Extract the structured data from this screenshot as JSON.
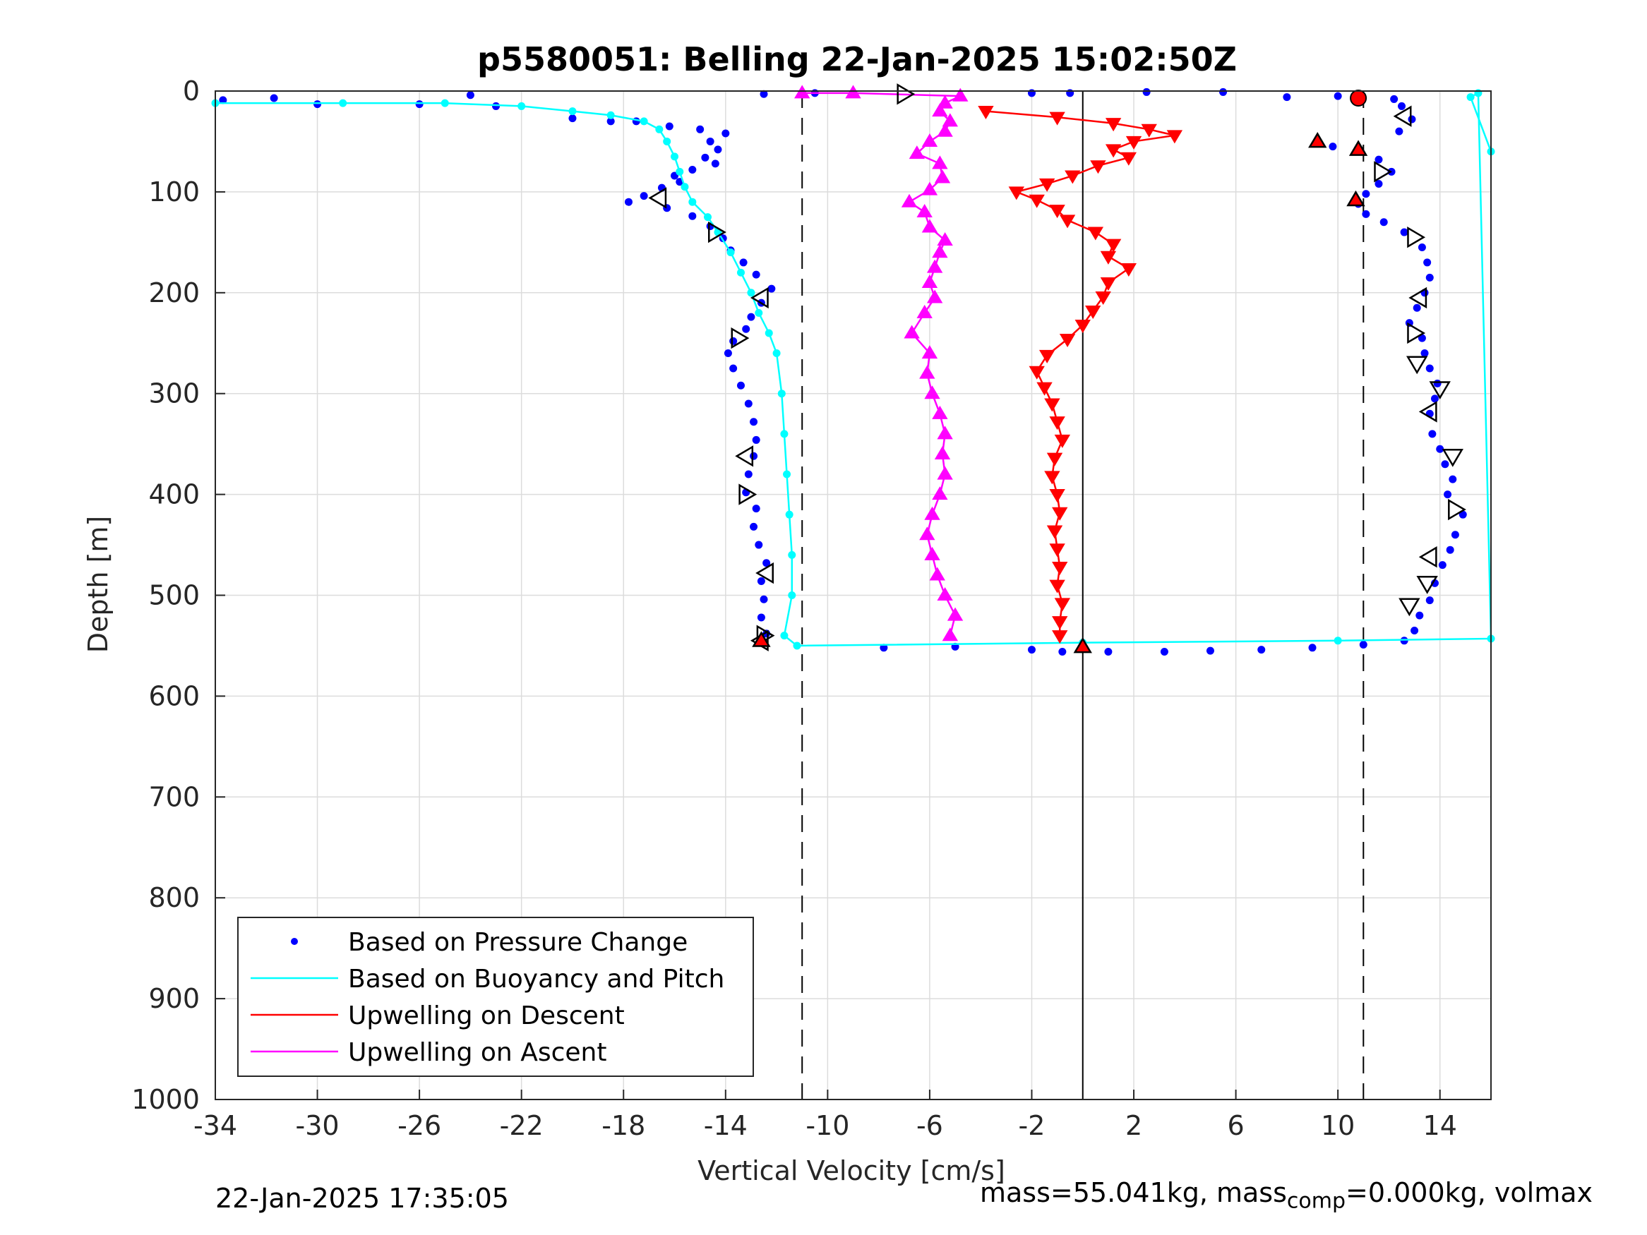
{
  "chart_data": {
    "type": "scatter",
    "title": "p5580051: Belling 22-Jan-2025 15:02:50Z",
    "xlabel": "Vertical Velocity [cm/s]",
    "ylabel": "Depth [m]",
    "xlim": [
      -34,
      16
    ],
    "ylim": [
      0,
      1000
    ],
    "y_reversed": true,
    "grid": true,
    "x_ticks": [
      -34,
      -30,
      -26,
      -22,
      -18,
      -14,
      -10,
      -6,
      -2,
      2,
      6,
      10,
      14
    ],
    "x_tick_labels": [
      "-34",
      "-30",
      "-26",
      "-22",
      "-18",
      "-14",
      "-10",
      "-6",
      "-2",
      "2",
      "6",
      "10",
      "14"
    ],
    "y_ticks": [
      0,
      100,
      200,
      300,
      400,
      500,
      600,
      700,
      800,
      900,
      1000
    ],
    "y_tick_labels": [
      "0",
      "100",
      "200",
      "300",
      "400",
      "500",
      "600",
      "700",
      "800",
      "900",
      "1000"
    ],
    "reference_lines": [
      {
        "x": -11,
        "style": "dashed"
      },
      {
        "x": 0,
        "style": "solid"
      },
      {
        "x": 11,
        "style": "dashed"
      }
    ],
    "legend": {
      "placement": "bottom-left",
      "entries": [
        {
          "label": "Based on Pressure Change",
          "color": "#0000ff",
          "marker": "dot"
        },
        {
          "label": "Based on Buoyancy and Pitch",
          "color": "#00ffff",
          "marker": "line"
        },
        {
          "label": "Upwelling on Descent",
          "color": "#ff0000",
          "marker": "line"
        },
        {
          "label": "Upwelling on Ascent",
          "color": "#ff00ff",
          "marker": "line"
        }
      ]
    },
    "series": [
      {
        "name": "Based on Pressure Change",
        "color": "#0000ff",
        "marker": "dot",
        "points": [
          [
            -33.7,
            9
          ],
          [
            -31.7,
            7
          ],
          [
            -30.0,
            13
          ],
          [
            -26.0,
            13
          ],
          [
            -24.0,
            4
          ],
          [
            -23.0,
            15
          ],
          [
            -20.0,
            27
          ],
          [
            -18.5,
            30
          ],
          [
            -17.5,
            30
          ],
          [
            -16.2,
            35
          ],
          [
            -15.0,
            38
          ],
          [
            -14.0,
            42
          ],
          [
            -14.6,
            50
          ],
          [
            -14.3,
            58
          ],
          [
            -14.8,
            66
          ],
          [
            -14.4,
            72
          ],
          [
            -15.3,
            78
          ],
          [
            -16.0,
            84
          ],
          [
            -15.8,
            90
          ],
          [
            -16.5,
            96
          ],
          [
            -17.2,
            104
          ],
          [
            -17.8,
            110
          ],
          [
            -16.3,
            116
          ],
          [
            -15.3,
            124
          ],
          [
            -14.6,
            134
          ],
          [
            -14.1,
            146
          ],
          [
            -13.8,
            158
          ],
          [
            -13.3,
            170
          ],
          [
            -12.8,
            182
          ],
          [
            -12.2,
            196
          ],
          [
            -12.6,
            210
          ],
          [
            -13.0,
            224
          ],
          [
            -13.2,
            236
          ],
          [
            -13.7,
            248
          ],
          [
            -13.9,
            260
          ],
          [
            -13.7,
            275
          ],
          [
            -13.4,
            292
          ],
          [
            -13.1,
            310
          ],
          [
            -12.9,
            328
          ],
          [
            -12.8,
            346
          ],
          [
            -12.9,
            362
          ],
          [
            -13.1,
            380
          ],
          [
            -13.2,
            398
          ],
          [
            -12.8,
            414
          ],
          [
            -12.9,
            432
          ],
          [
            -12.7,
            450
          ],
          [
            -12.4,
            468
          ],
          [
            -12.6,
            486
          ],
          [
            -12.5,
            504
          ],
          [
            -12.6,
            522
          ],
          [
            -12.4,
            538
          ],
          [
            -12.6,
            546
          ],
          [
            -7.8,
            552
          ],
          [
            -5.0,
            551
          ],
          [
            -2.0,
            554
          ],
          [
            -0.8,
            556
          ],
          [
            1.0,
            556
          ],
          [
            3.2,
            556
          ],
          [
            5.0,
            555
          ],
          [
            7.0,
            554
          ],
          [
            9.0,
            552
          ],
          [
            11.0,
            549
          ],
          [
            12.6,
            545
          ],
          [
            13.0,
            535
          ],
          [
            13.2,
            520
          ],
          [
            13.6,
            505
          ],
          [
            13.8,
            488
          ],
          [
            14.1,
            470
          ],
          [
            14.4,
            455
          ],
          [
            14.6,
            440
          ],
          [
            14.9,
            420
          ],
          [
            14.3,
            400
          ],
          [
            14.5,
            385
          ],
          [
            14.2,
            370
          ],
          [
            14.0,
            355
          ],
          [
            13.7,
            340
          ],
          [
            13.6,
            320
          ],
          [
            13.8,
            305
          ],
          [
            13.9,
            290
          ],
          [
            13.6,
            275
          ],
          [
            13.4,
            260
          ],
          [
            13.3,
            245
          ],
          [
            12.8,
            230
          ],
          [
            13.1,
            215
          ],
          [
            13.4,
            200
          ],
          [
            13.6,
            185
          ],
          [
            13.5,
            170
          ],
          [
            13.3,
            155
          ],
          [
            12.6,
            140
          ],
          [
            11.8,
            130
          ],
          [
            11.1,
            122
          ],
          [
            10.8,
            112
          ],
          [
            11.1,
            102
          ],
          [
            11.6,
            92
          ],
          [
            12.1,
            80
          ],
          [
            11.6,
            68
          ],
          [
            10.8,
            58
          ],
          [
            9.2,
            50
          ],
          [
            9.8,
            55
          ],
          [
            12.4,
            40
          ],
          [
            12.9,
            28
          ],
          [
            12.5,
            15
          ],
          [
            12.2,
            8
          ],
          [
            10.0,
            5
          ],
          [
            8.0,
            6
          ],
          [
            5.5,
            1
          ],
          [
            2.5,
            1
          ],
          [
            -0.5,
            2
          ],
          [
            -2.0,
            2
          ],
          [
            -10.5,
            2
          ],
          [
            -12.5,
            3
          ]
        ]
      },
      {
        "name": "Based on Buoyancy and Pitch",
        "color": "#00ffff",
        "marker": "line",
        "points": [
          [
            -34.0,
            12
          ],
          [
            -29.0,
            12
          ],
          [
            -25.0,
            12
          ],
          [
            -22.0,
            15
          ],
          [
            -20.0,
            20
          ],
          [
            -18.5,
            24
          ],
          [
            -17.2,
            30
          ],
          [
            -16.6,
            38
          ],
          [
            -16.3,
            50
          ],
          [
            -16.0,
            65
          ],
          [
            -15.8,
            80
          ],
          [
            -15.6,
            95
          ],
          [
            -15.3,
            110
          ],
          [
            -14.7,
            125
          ],
          [
            -14.3,
            140
          ],
          [
            -13.8,
            160
          ],
          [
            -13.4,
            180
          ],
          [
            -13.0,
            200
          ],
          [
            -12.7,
            220
          ],
          [
            -12.3,
            240
          ],
          [
            -12.0,
            260
          ],
          [
            -11.8,
            300
          ],
          [
            -11.7,
            340
          ],
          [
            -11.6,
            380
          ],
          [
            -11.5,
            420
          ],
          [
            -11.4,
            460
          ],
          [
            -11.4,
            500
          ],
          [
            -11.7,
            540
          ],
          [
            -11.2,
            550
          ],
          [
            0.0,
            547
          ],
          [
            10.0,
            545
          ],
          [
            16.0,
            543
          ],
          [
            15.5,
            2
          ],
          [
            15.2,
            6
          ],
          [
            16.0,
            60
          ]
        ]
      },
      {
        "name": "Upwelling on Descent",
        "color": "#ff0000",
        "marker": "triangle-down",
        "points": [
          [
            -3.8,
            20
          ],
          [
            -1.0,
            26
          ],
          [
            1.2,
            32
          ],
          [
            2.6,
            38
          ],
          [
            3.6,
            44
          ],
          [
            2.0,
            50
          ],
          [
            1.2,
            58
          ],
          [
            1.8,
            66
          ],
          [
            0.6,
            74
          ],
          [
            -0.4,
            84
          ],
          [
            -1.4,
            92
          ],
          [
            -2.6,
            100
          ],
          [
            -1.8,
            108
          ],
          [
            -1.0,
            118
          ],
          [
            -0.6,
            128
          ],
          [
            0.5,
            140
          ],
          [
            1.2,
            152
          ],
          [
            1.0,
            164
          ],
          [
            1.8,
            176
          ],
          [
            1.0,
            190
          ],
          [
            0.8,
            204
          ],
          [
            0.4,
            218
          ],
          [
            0.0,
            232
          ],
          [
            -0.6,
            246
          ],
          [
            -1.4,
            262
          ],
          [
            -1.8,
            278
          ],
          [
            -1.5,
            294
          ],
          [
            -1.2,
            310
          ],
          [
            -1.0,
            328
          ],
          [
            -0.8,
            346
          ],
          [
            -1.1,
            364
          ],
          [
            -1.2,
            382
          ],
          [
            -1.0,
            400
          ],
          [
            -0.9,
            418
          ],
          [
            -1.1,
            436
          ],
          [
            -1.0,
            454
          ],
          [
            -0.9,
            472
          ],
          [
            -1.0,
            490
          ],
          [
            -0.8,
            508
          ],
          [
            -0.9,
            526
          ],
          [
            -0.9,
            540
          ]
        ]
      },
      {
        "name": "Upwelling on Ascent",
        "color": "#ff00ff",
        "marker": "triangle-up",
        "points": [
          [
            -5.2,
            540
          ],
          [
            -5.0,
            520
          ],
          [
            -5.4,
            500
          ],
          [
            -5.7,
            480
          ],
          [
            -5.9,
            460
          ],
          [
            -6.1,
            440
          ],
          [
            -5.9,
            420
          ],
          [
            -5.6,
            400
          ],
          [
            -5.4,
            380
          ],
          [
            -5.5,
            360
          ],
          [
            -5.4,
            340
          ],
          [
            -5.6,
            320
          ],
          [
            -5.9,
            300
          ],
          [
            -6.1,
            280
          ],
          [
            -6.0,
            260
          ],
          [
            -6.7,
            240
          ],
          [
            -6.2,
            220
          ],
          [
            -5.8,
            205
          ],
          [
            -6.0,
            190
          ],
          [
            -5.8,
            175
          ],
          [
            -5.6,
            160
          ],
          [
            -5.4,
            148
          ],
          [
            -6.0,
            135
          ],
          [
            -6.2,
            120
          ],
          [
            -6.8,
            110
          ],
          [
            -6.0,
            98
          ],
          [
            -5.5,
            86
          ],
          [
            -5.6,
            72
          ],
          [
            -6.5,
            62
          ],
          [
            -6.0,
            50
          ],
          [
            -5.4,
            40
          ],
          [
            -5.2,
            30
          ],
          [
            -5.6,
            20
          ],
          [
            -5.4,
            12
          ],
          [
            -4.8,
            5
          ],
          [
            -9.0,
            2
          ],
          [
            -11.0,
            2
          ]
        ]
      }
    ],
    "markers": [
      {
        "shape": "triangle-right",
        "color": "#000000",
        "points": [
          [
            -7.0,
            3
          ],
          [
            -14.4,
            140
          ],
          [
            -13.5,
            245
          ],
          [
            -13.2,
            400
          ],
          [
            -12.5,
            540
          ],
          [
            11.7,
            80
          ],
          [
            13.0,
            145
          ],
          [
            13.0,
            240
          ],
          [
            14.6,
            415
          ]
        ]
      },
      {
        "shape": "triangle-left",
        "color": "#000000",
        "points": [
          [
            -16.6,
            106
          ],
          [
            -12.6,
            205
          ],
          [
            -13.2,
            362
          ],
          [
            -12.4,
            478
          ],
          [
            -12.6,
            545
          ],
          [
            12.6,
            25
          ],
          [
            13.2,
            205
          ],
          [
            13.6,
            318
          ],
          [
            13.6,
            462
          ]
        ]
      },
      {
        "shape": "triangle-down",
        "color": "#000000",
        "points": [
          [
            13.1,
            270
          ],
          [
            14.0,
            295
          ],
          [
            14.5,
            362
          ],
          [
            13.5,
            488
          ],
          [
            12.8,
            510
          ]
        ]
      },
      {
        "shape": "triangle-up-filled",
        "color": "#ff0000",
        "points": [
          [
            9.2,
            50
          ],
          [
            10.8,
            58
          ],
          [
            10.7,
            108
          ],
          [
            0.0,
            551
          ],
          [
            -12.6,
            545
          ]
        ]
      },
      {
        "shape": "circle-filled",
        "color": "#ff0000",
        "points": [
          [
            10.8,
            7
          ]
        ]
      }
    ]
  },
  "footer": {
    "timestamp": "22-Jan-2025 17:35:05",
    "mass_text_a": "mass=55.041kg, mass",
    "mass_sub": "comp",
    "mass_text_b": "=0.000kg, volmax"
  }
}
